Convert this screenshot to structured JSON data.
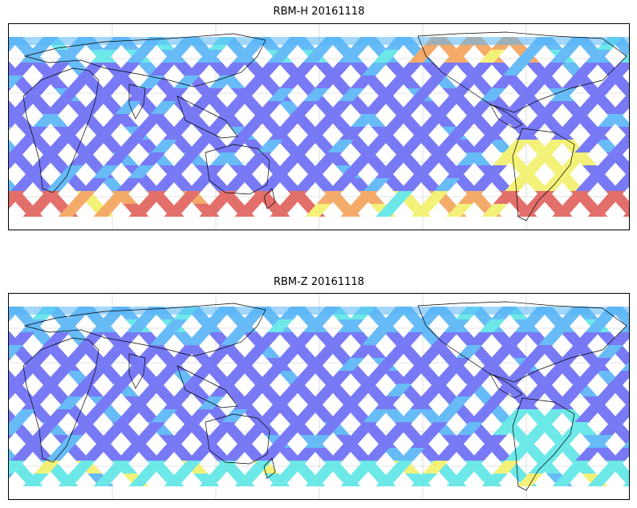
{
  "panels": [
    {
      "title": "RBM-H 20161118",
      "field": "H"
    },
    {
      "title": "RBM-Z 20161118",
      "field": "Z"
    }
  ],
  "colors": {
    "low": "#6a6cf5",
    "mid_low": "#57b4f7",
    "mid": "#5ee6e6",
    "mid_high": "#f3f06b",
    "high": "#f3a25a",
    "max": "#e0605c",
    "land_outline": "#000000",
    "gridline": "#c8c8c8"
  },
  "map": {
    "projection": "equirectangular",
    "lon_range": [
      0,
      360
    ],
    "lat_range": [
      -90,
      90
    ],
    "swath_lat_limit": [
      -60,
      80
    ],
    "gridlines": true
  }
}
